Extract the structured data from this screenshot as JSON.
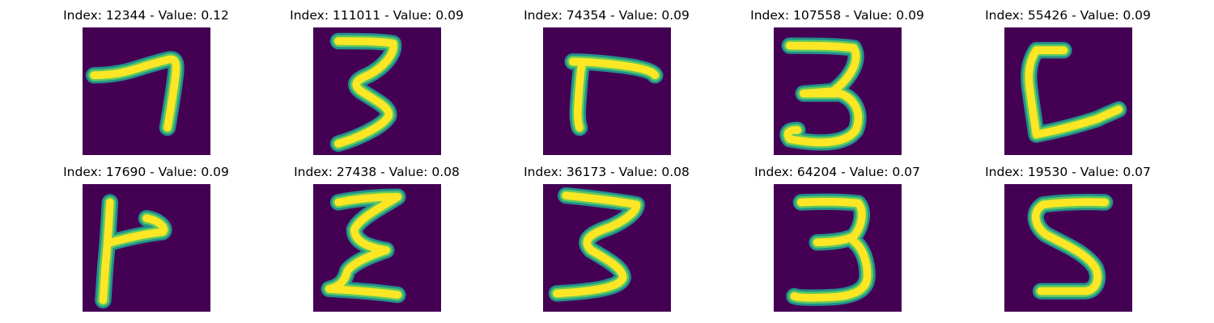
{
  "panels": [
    {
      "title": "Index: 12344 - Value: 0.12",
      "digit_subject": "handwritten 7"
    },
    {
      "title": "Index: 111011 - Value: 0.09",
      "digit_subject": "handwritten 3"
    },
    {
      "title": "Index: 74354 - Value: 0.09",
      "digit_subject": "handwritten 7"
    },
    {
      "title": "Index: 107558 - Value: 0.09",
      "digit_subject": "handwritten 3"
    },
    {
      "title": "Index: 55426 - Value: 0.09",
      "digit_subject": "handwritten L-shape"
    },
    {
      "title": "Index: 17690 - Value: 0.09",
      "digit_subject": "handwritten 7"
    },
    {
      "title": "Index: 27438 - Value: 0.08",
      "digit_subject": "handwritten 3"
    },
    {
      "title": "Index: 36173 - Value: 0.08",
      "digit_subject": "handwritten 3"
    },
    {
      "title": "Index: 64204 - Value: 0.07",
      "digit_subject": "handwritten 3"
    },
    {
      "title": "Index: 19530 - Value: 0.07",
      "digit_subject": "handwritten 5"
    }
  ],
  "colors": {
    "background": "#440154",
    "edge": "#21918c",
    "mid": "#5ec962",
    "stroke": "#fde725"
  }
}
